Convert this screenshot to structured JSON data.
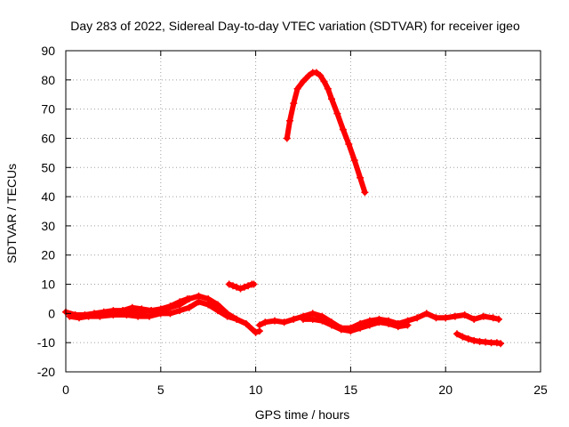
{
  "chart_data": {
    "type": "scatter",
    "title": "Day 283 of 2022, Sidereal Day-to-day VTEC variation (SDTVAR) for receiver igeo",
    "xlabel": "GPS time / hours",
    "ylabel": "SDTVAR / TECUs",
    "xlim": [
      0,
      25
    ],
    "ylim": [
      -20,
      90
    ],
    "xticks": [
      "0",
      "5",
      "10",
      "15",
      "20",
      "25"
    ],
    "yticks": [
      "-20",
      "-10",
      "0",
      "10",
      "20",
      "30",
      "40",
      "50",
      "60",
      "70",
      "80",
      "90"
    ],
    "grid": true,
    "series_color": "#ff0000",
    "series": [
      {
        "name": "main-band-a",
        "x": [
          0,
          0.5,
          1,
          1.5,
          2,
          2.5,
          3,
          3.5,
          4,
          4.5,
          5,
          5.5,
          6,
          6.5,
          7,
          7.5,
          8,
          8.5,
          9,
          9.5,
          10,
          10.2
        ],
        "y": [
          0.5,
          -0.5,
          -0.5,
          0,
          0.5,
          1,
          1,
          0.5,
          0.5,
          1,
          1,
          2,
          3,
          5,
          6,
          5,
          3,
          0,
          -2,
          -3.5,
          -6.5,
          -6
        ]
      },
      {
        "name": "main-band-b",
        "x": [
          0.2,
          0.7,
          1.2,
          1.8,
          2.5,
          3.2,
          3.8,
          4.4,
          5,
          5.5,
          6,
          6.5,
          7,
          7.5,
          8,
          8.5,
          9
        ],
        "y": [
          -1,
          -1.5,
          -1,
          -1,
          -0.5,
          -0.5,
          -1,
          -1,
          0,
          0,
          1,
          2,
          4,
          3,
          1,
          -1,
          -2
        ]
      },
      {
        "name": "main-band-c",
        "x": [
          3,
          3.5,
          4,
          4.5,
          5,
          5.5,
          6,
          6.4
        ],
        "y": [
          1,
          2,
          1.5,
          1,
          1.5,
          2.5,
          4,
          5
        ]
      },
      {
        "name": "small-arc-9h",
        "x": [
          8.6,
          8.8,
          9,
          9.2,
          9.4,
          9.6,
          9.8,
          9.9
        ],
        "y": [
          10,
          9.5,
          9,
          8.5,
          9,
          9.5,
          10,
          10
        ]
      },
      {
        "name": "mid-band",
        "x": [
          10.2,
          10.5,
          11,
          11.5,
          12,
          12.5,
          13,
          13.5,
          14,
          14.5,
          15,
          15.5,
          16,
          16.5,
          17,
          17.5,
          18,
          18.5,
          19,
          19.5,
          20,
          20.5,
          21,
          21.5,
          22,
          22.5,
          22.8
        ],
        "y": [
          -4,
          -3,
          -2.5,
          -3,
          -2,
          -1,
          0,
          -1,
          -3,
          -5,
          -5,
          -3.5,
          -2.5,
          -2,
          -2.5,
          -3.5,
          -2.5,
          -1.5,
          0,
          -1.5,
          -1.5,
          -1,
          -0.5,
          -2,
          -1,
          -1.5,
          -2
        ]
      },
      {
        "name": "mid-band-lower",
        "x": [
          12.5,
          13,
          13.5,
          14,
          14.5,
          15,
          15.5,
          16,
          16.5,
          17,
          17.5,
          18
        ],
        "y": [
          -2,
          -2,
          -2.5,
          -4,
          -5.5,
          -6,
          -5,
          -4,
          -3,
          -3.5,
          -4.5,
          -4
        ]
      },
      {
        "name": "high-arc",
        "x": [
          11.65,
          11.8,
          12,
          12.2,
          12.5,
          12.8,
          13,
          13.2,
          13.4,
          13.6,
          13.8,
          14,
          14.3,
          14.6,
          14.9,
          15.2,
          15.5,
          15.75
        ],
        "y": [
          60,
          66,
          72,
          77,
          79.5,
          81.5,
          82.5,
          82.5,
          81.5,
          79.5,
          77,
          73.5,
          68.5,
          63,
          58,
          52.5,
          46.5,
          41.5
        ]
      },
      {
        "name": "low-tail-21h",
        "x": [
          20.6,
          20.9,
          21.2,
          21.5,
          21.8,
          22.1,
          22.4,
          22.7,
          22.9
        ],
        "y": [
          -7,
          -8,
          -8.7,
          -9.3,
          -9.6,
          -9.8,
          -10,
          -10,
          -10.3
        ]
      }
    ]
  }
}
